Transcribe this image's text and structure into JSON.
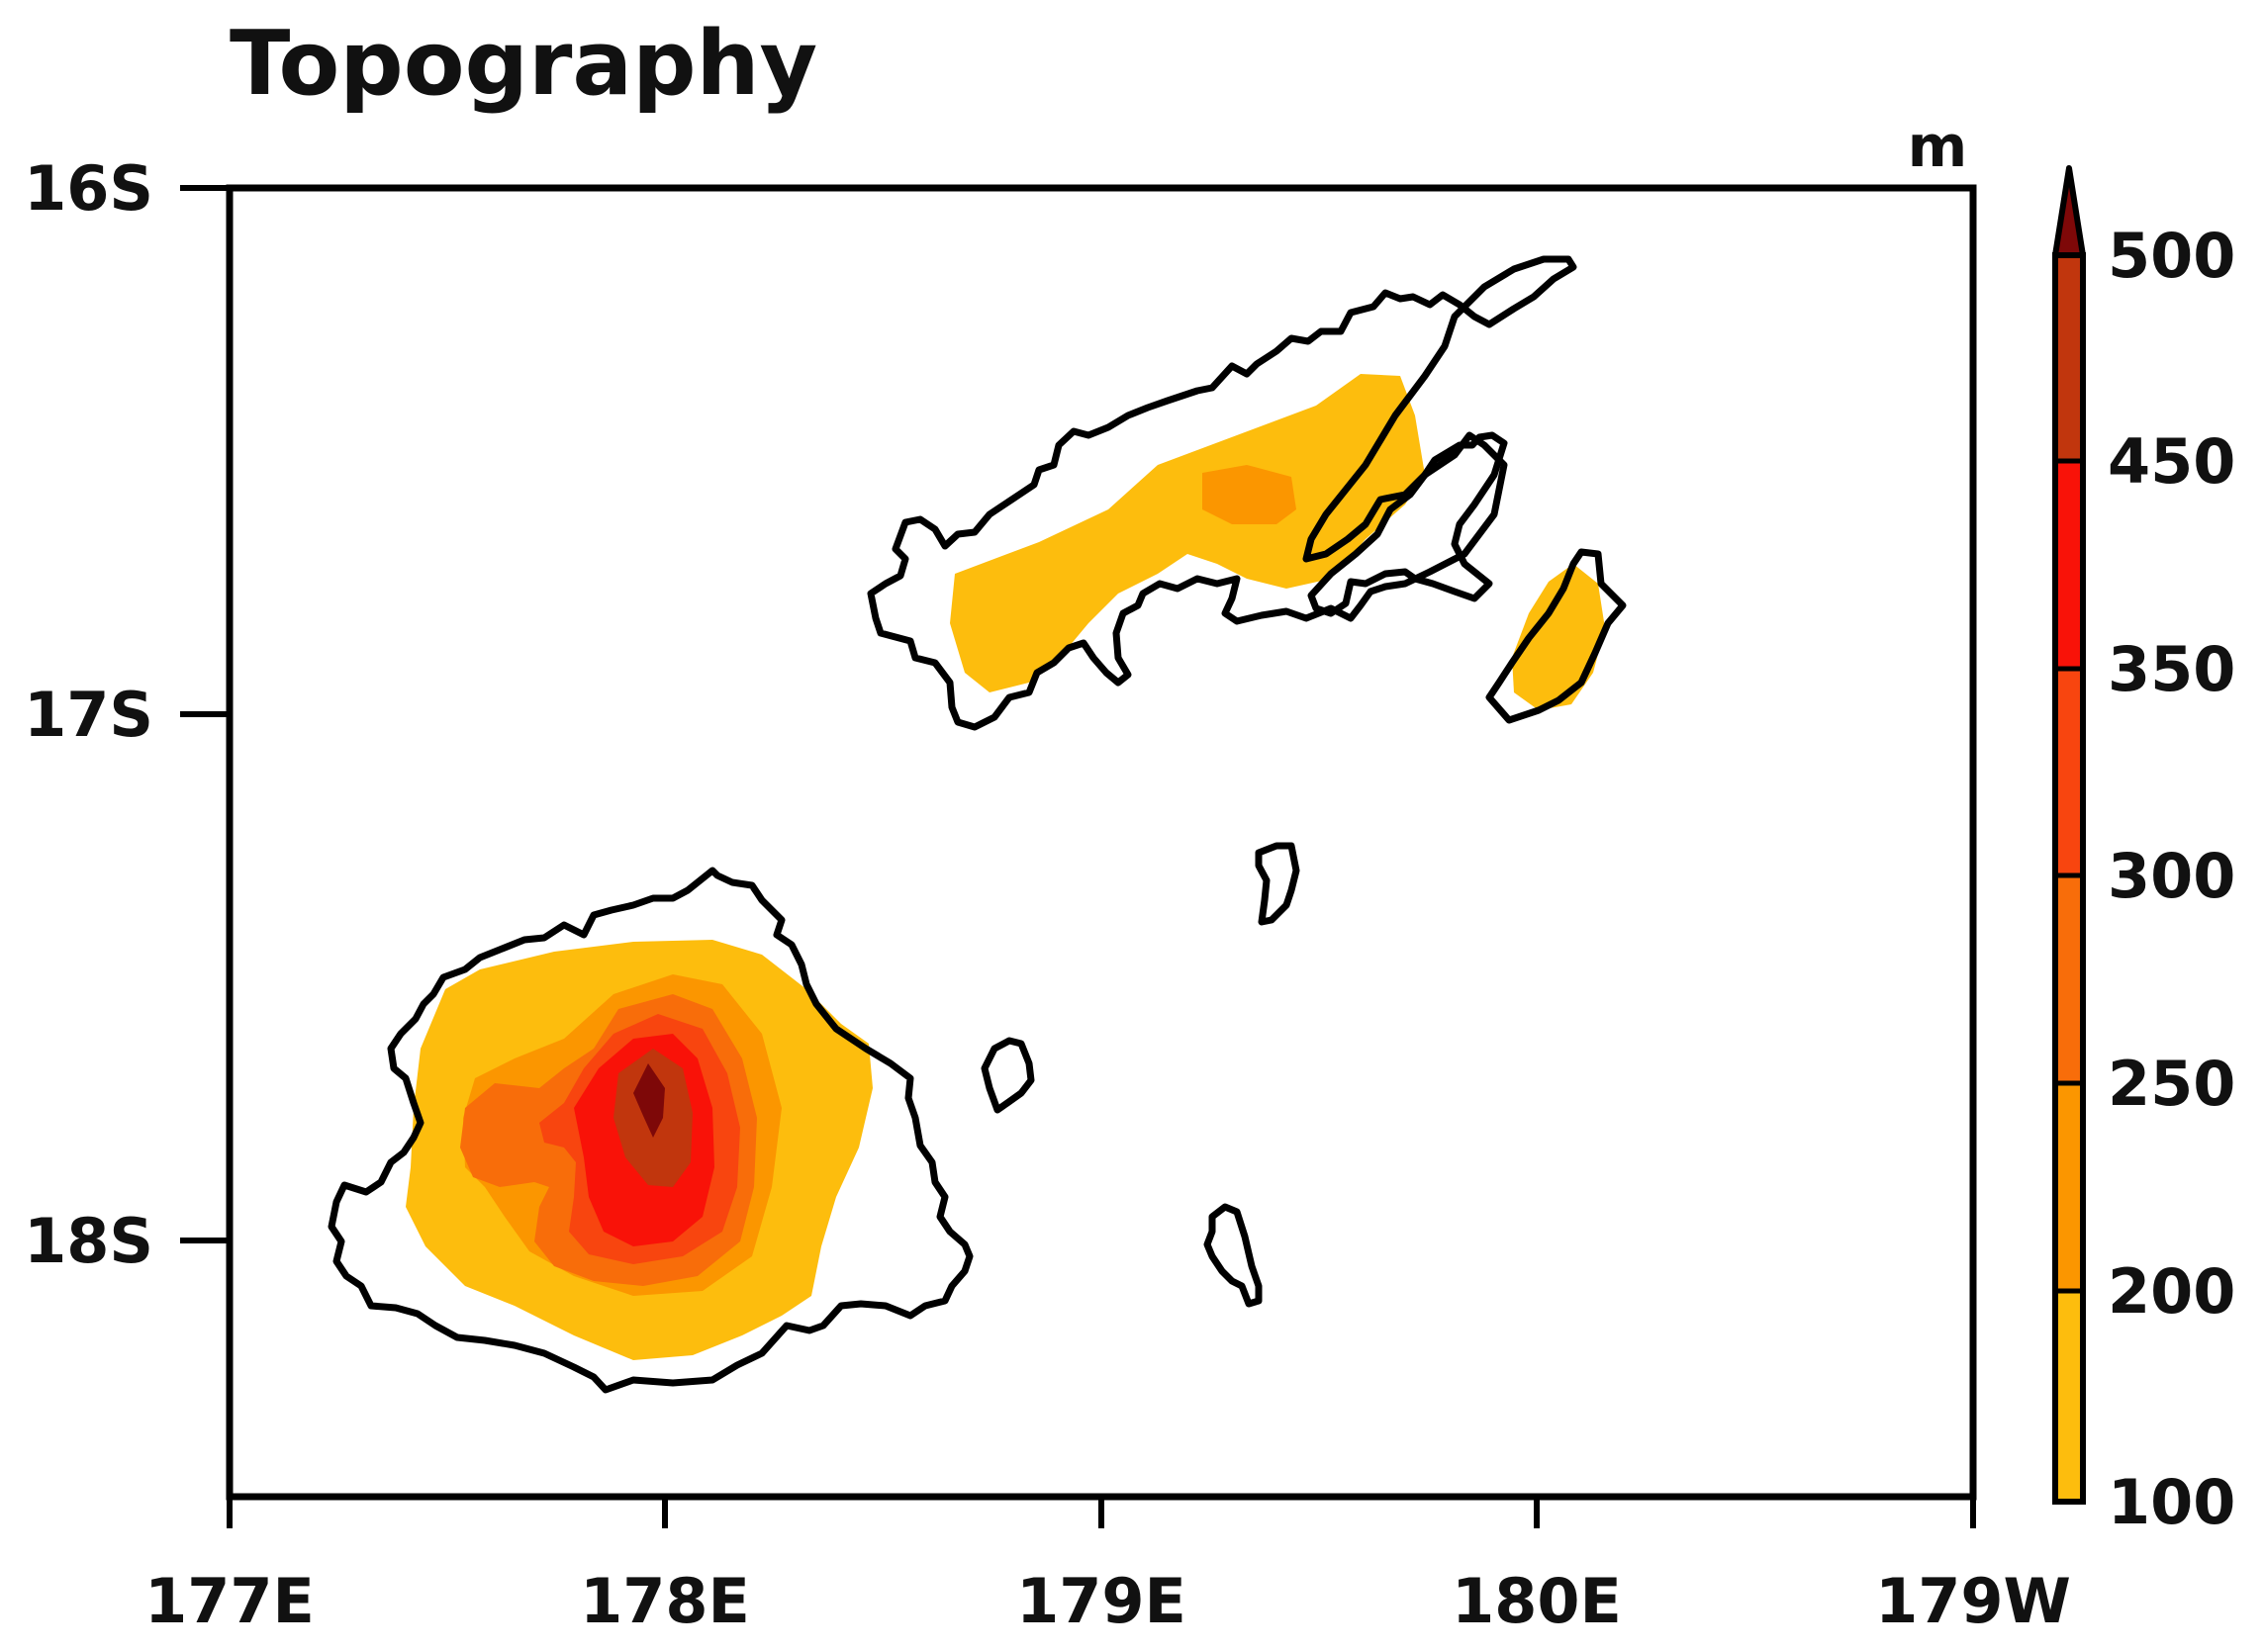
{
  "title": "Topography",
  "unit": "m",
  "x_ticks": [
    "177E",
    "178E",
    "179E",
    "180E",
    "179W"
  ],
  "y_ticks": [
    "16S",
    "17S",
    "18S"
  ],
  "colorbar": {
    "labels": [
      "100",
      "200",
      "250",
      "300",
      "350",
      "450",
      "500"
    ],
    "colors": [
      "#FDBD0D",
      "#FB9600",
      "#F86D0A",
      "#F8450F",
      "#F91208",
      "#C1360D",
      "#7E0808"
    ],
    "extend": "max"
  },
  "colors": {
    "c1": "#FDBD0D",
    "c2": "#FB9600",
    "c3": "#F86D0A",
    "c4": "#F8450F",
    "c5": "#F91208",
    "c6": "#C1360D",
    "c7": "#7E0808",
    "coast": "#000000"
  }
}
